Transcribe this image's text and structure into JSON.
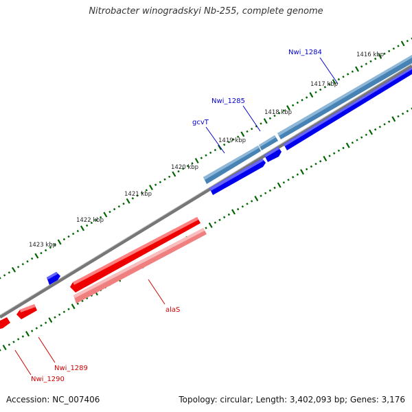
{
  "title": "Nitrobacter winogradskyi Nb-255, complete genome",
  "footer": {
    "accession": "Accession: NC_007406",
    "summary": "Topology: circular; Length: 3,402,093 bp; Genes: 3,176"
  },
  "colors": {
    "forward_gene": "#0000ee",
    "forward_gene_light": "#4682b4",
    "reverse_gene": "#ee0000",
    "reverse_gene_light": "#f08080",
    "backbone": "#777777",
    "tick": "#006400",
    "forward_label": "#0000cc",
    "reverse_label": "#cc0000"
  },
  "ticks": [
    {
      "label": "1416 kbp"
    },
    {
      "label": "1417 kbp"
    },
    {
      "label": "1418 kbp"
    },
    {
      "label": "1419 kbp"
    },
    {
      "label": "1420 kbp"
    },
    {
      "label": "1421 kbp"
    },
    {
      "label": "1422 kbp"
    },
    {
      "label": "1423 kbp"
    }
  ],
  "genes": [
    {
      "name": "Nwi_1284",
      "strand": "forward"
    },
    {
      "name": "Nwi_1285",
      "strand": "forward"
    },
    {
      "name": "gcvT",
      "strand": "forward"
    },
    {
      "name": "alaS",
      "strand": "reverse"
    },
    {
      "name": "Nwi_1289",
      "strand": "reverse"
    },
    {
      "name": "Nwi_1290",
      "strand": "reverse"
    }
  ]
}
